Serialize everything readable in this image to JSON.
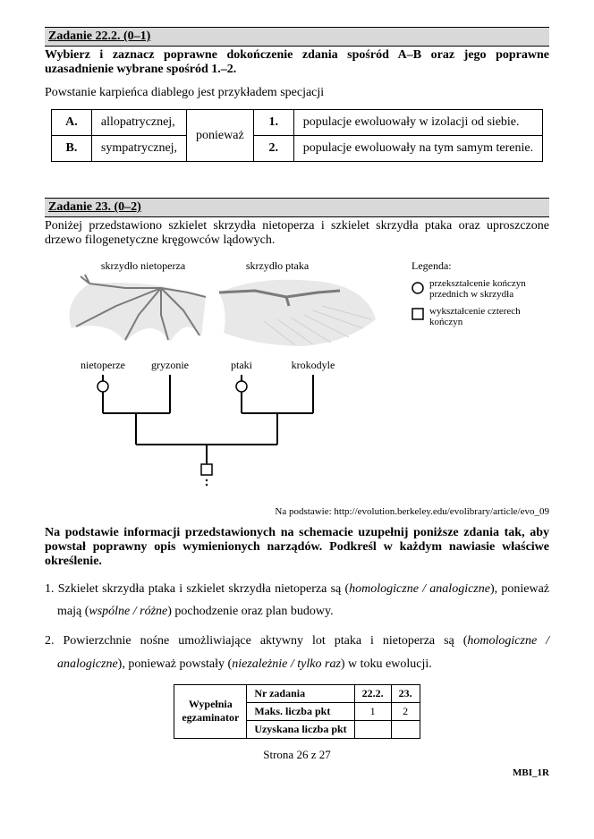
{
  "task22": {
    "header": "Zadanie 22.2. (0–1)",
    "instruction": "Wybierz i zaznacz poprawne dokończenie zdania spośród A–B oraz jego poprawne uzasadnienie wybrane spośród 1.–2.",
    "lead_in": "Powstanie karpieńca diablego jest przykładem specjacji",
    "table": {
      "rowA_label": "A.",
      "rowA_text": "allopatrycznej,",
      "rowB_label": "B.",
      "rowB_text": "sympatrycznej,",
      "middle": "ponieważ",
      "row1_label": "1.",
      "row1_text": "populacje ewoluowały w izolacji od siebie.",
      "row2_label": "2.",
      "row2_text": "populacje ewoluowały na tym samym terenie."
    }
  },
  "task23": {
    "header": "Zadanie 23. (0–2)",
    "intro": "Poniżej przedstawiono szkielet skrzydła nietoperza i szkielet skrzydła ptaka oraz uproszczone drzewo filogenetyczne kręgowców lądowych.",
    "diagram": {
      "label_bat": "skrzydło nietoperza",
      "label_bird": "skrzydło ptaka",
      "legend_title": "Legenda:",
      "legend_circle": "przekształcenie kończyn przednich w skrzydła",
      "legend_square": "wykształcenie czterech kończyn",
      "taxa": [
        "nietoperze",
        "gryzonie",
        "ptaki",
        "krokodyle"
      ],
      "colors": {
        "wing_fill": "#e8e8e8",
        "bone_stroke": "#7a7a7a",
        "tree_stroke": "#000000",
        "marker_fill": "#ffffff"
      }
    },
    "source": "Na podstawie: http://evolution.berkeley.edu/evolibrary/article/evo_09",
    "fill_instruction": "Na podstawie informacji przedstawionych na schemacie uzupełnij poniższe zdania tak, aby powstał poprawny opis wymienionych narządów. Podkreśl w każdym nawiasie właściwe określenie.",
    "q1_pre": "1. Szkielet skrzydła ptaka i szkielet skrzydła nietoperza są (",
    "q1_opt": "homologiczne / analogiczne",
    "q1_post": "), ponieważ mają (",
    "q1_opt2": "wspólne / różne",
    "q1_end": ") pochodzenie oraz plan budowy.",
    "q2_pre": "2. Powierzchnie nośne umożliwiające aktywny lot ptaka i nietoperza są (",
    "q2_opt": "homologiczne / analogiczne",
    "q2_post": "), ponieważ powstały (",
    "q2_opt2": "niezależnie / tylko raz",
    "q2_end": ") w toku ewolucji."
  },
  "score": {
    "lead": "Wypełnia egzaminator",
    "row1": "Nr zadania",
    "row2": "Maks. liczba pkt",
    "row3": "Uzyskana liczba pkt",
    "col1": "22.2.",
    "col2": "23.",
    "max1": "1",
    "max2": "2"
  },
  "page": "Strona 26 z 27",
  "code": "MBI_1R"
}
